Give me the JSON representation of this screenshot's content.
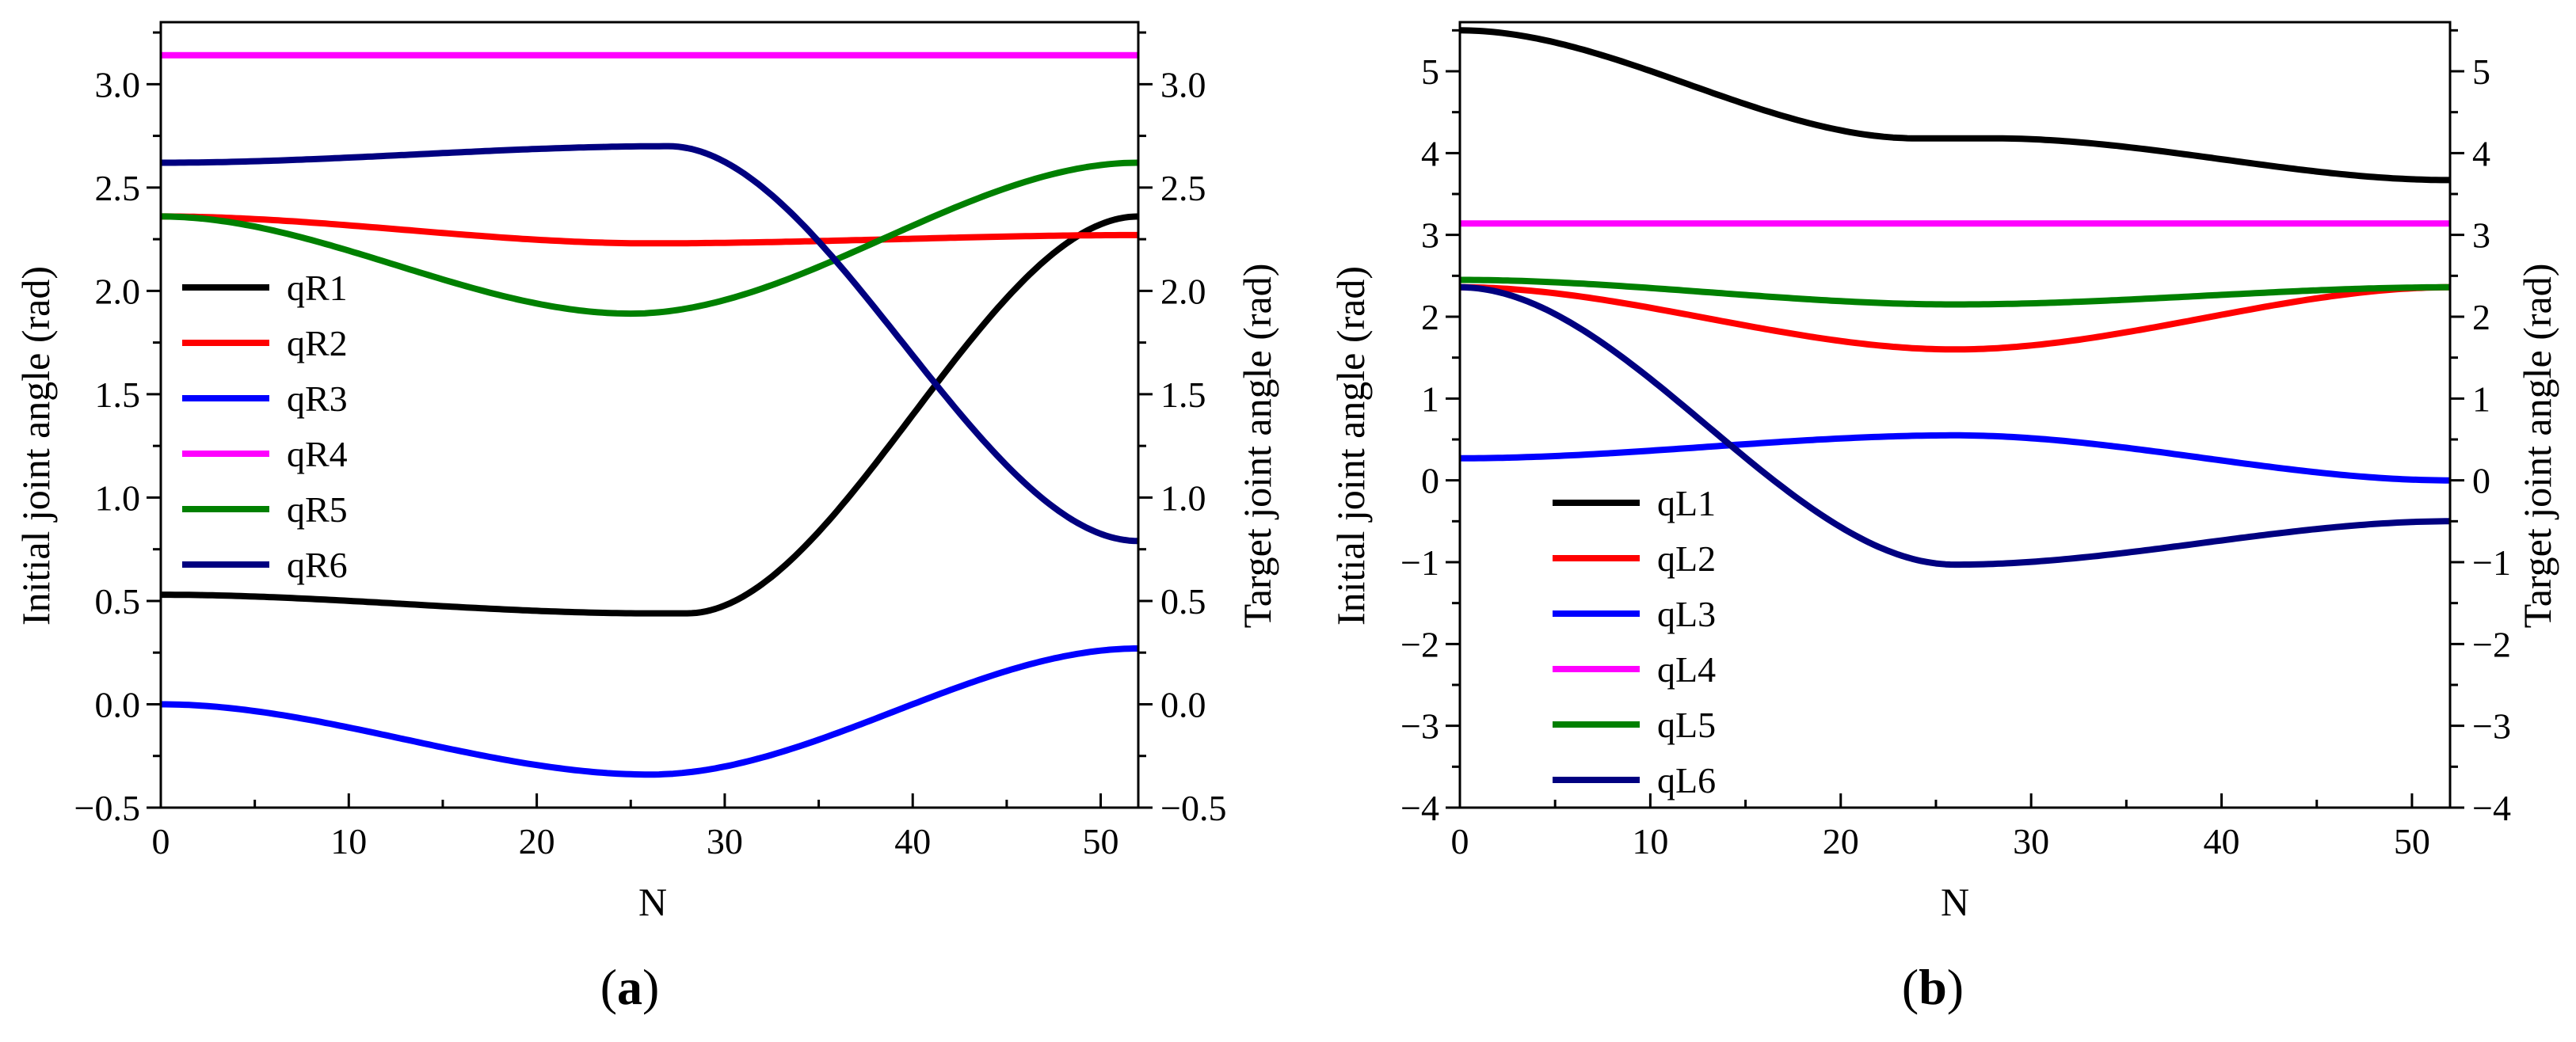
{
  "chart_data": [
    {
      "type": "line",
      "panel_label": "a",
      "xlabel": "N",
      "ylabel_left": "Initial joint angle (rad)",
      "ylabel_right": "Target joint angle (rad)",
      "xlim": [
        0,
        52
      ],
      "ylim": [
        -0.5,
        3.3
      ],
      "xticks": [
        0,
        10,
        20,
        30,
        40,
        50
      ],
      "yticks": [
        -0.5,
        0.0,
        0.5,
        1.0,
        1.5,
        2.0,
        2.5,
        3.0
      ],
      "ytick_labels": [
        "−0.5",
        "0.0",
        "0.5",
        "1.0",
        "1.5",
        "2.0",
        "2.5",
        "3.0"
      ],
      "legend_position": "center-left",
      "series": [
        {
          "name": "qR1",
          "color": "#000000",
          "keys": [
            [
              0,
              0.53
            ],
            [
              26,
              0.44
            ],
            [
              28,
              0.44
            ],
            [
              52,
              2.36
            ]
          ]
        },
        {
          "name": "qR2",
          "color": "#ff0000",
          "keys": [
            [
              0,
              2.36
            ],
            [
              26,
              2.23
            ],
            [
              52,
              2.27
            ]
          ]
        },
        {
          "name": "qR3",
          "color": "#0000ff",
          "keys": [
            [
              0,
              0.0
            ],
            [
              26,
              -0.34
            ],
            [
              52,
              0.27
            ]
          ]
        },
        {
          "name": "qR4",
          "color": "#ff00ff",
          "keys": [
            [
              0,
              3.14
            ],
            [
              52,
              3.14
            ]
          ]
        },
        {
          "name": "qR5",
          "color": "#008000",
          "keys": [
            [
              0,
              2.36
            ],
            [
              25,
              1.89
            ],
            [
              52,
              2.62
            ]
          ]
        },
        {
          "name": "qR6",
          "color": "#000080",
          "keys": [
            [
              0,
              2.62
            ],
            [
              27,
              2.7
            ],
            [
              52,
              0.79
            ]
          ]
        }
      ]
    },
    {
      "type": "line",
      "panel_label": "b",
      "xlabel": "N",
      "ylabel_left": "Initial joint angle (rad)",
      "ylabel_right": "Target joint angle (rad)",
      "xlim": [
        0,
        52
      ],
      "ylim": [
        -4,
        5.6
      ],
      "xticks": [
        0,
        10,
        20,
        30,
        40,
        50
      ],
      "yticks": [
        -4,
        -3,
        -2,
        -1,
        0,
        1,
        2,
        3,
        4,
        5
      ],
      "ytick_labels": [
        "−4",
        "−3",
        "−2",
        "−1",
        "0",
        "1",
        "2",
        "3",
        "4",
        "5"
      ],
      "legend_position": "bottom-left",
      "series": [
        {
          "name": "qL1",
          "color": "#000000",
          "keys": [
            [
              0,
              5.5
            ],
            [
              24,
              4.18
            ],
            [
              28,
              4.18
            ],
            [
              52,
              3.67
            ]
          ]
        },
        {
          "name": "qL2",
          "color": "#ff0000",
          "keys": [
            [
              0,
              2.36
            ],
            [
              26,
              1.6
            ],
            [
              52,
              2.36
            ]
          ]
        },
        {
          "name": "qL3",
          "color": "#0000ff",
          "keys": [
            [
              0,
              0.27
            ],
            [
              26,
              0.55
            ],
            [
              52,
              0.0
            ]
          ]
        },
        {
          "name": "qL4",
          "color": "#ff00ff",
          "keys": [
            [
              0,
              3.14
            ],
            [
              52,
              3.14
            ]
          ]
        },
        {
          "name": "qL5",
          "color": "#008000",
          "keys": [
            [
              0,
              2.45
            ],
            [
              26,
              2.15
            ],
            [
              52,
              2.36
            ]
          ]
        },
        {
          "name": "qL6",
          "color": "#000080",
          "keys": [
            [
              0,
              2.36
            ],
            [
              26,
              -1.03
            ],
            [
              52,
              -0.5
            ]
          ]
        }
      ]
    }
  ]
}
